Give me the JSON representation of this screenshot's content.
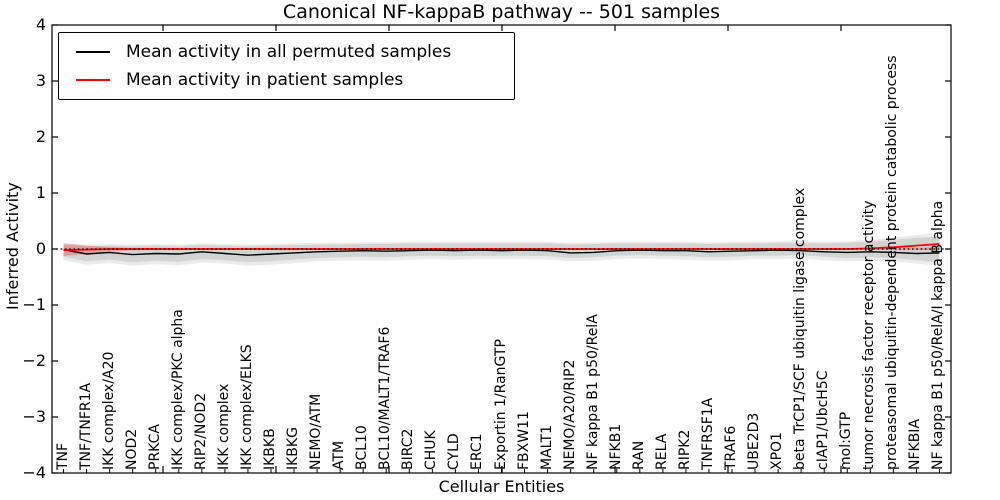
{
  "chart_data": {
    "type": "line",
    "title": "Canonical NF-kappaB pathway -- 501 samples",
    "xlabel": "Cellular Entities",
    "ylabel": "Inferred Activity",
    "ylim": [
      -4,
      4
    ],
    "ytick_labels": [
      "4",
      "3",
      "2",
      "1",
      "0",
      "−1",
      "−2",
      "−3",
      "−4"
    ],
    "grid": false,
    "legend_position": "upper left",
    "zero_reference_line": "black dotted at y=0",
    "categories": [
      "TNF",
      "TNF/TNFR1A",
      "IKK complex/A20",
      "NOD2",
      "PRKCA",
      "IKK complex/PKC alpha",
      "RIP2/NOD2",
      "IKK complex",
      "IKK complex/ELKS",
      "IKBKB",
      "IKBKG",
      "NEMO/ATM",
      "ATM",
      "BCL10",
      "BCL10/MALT1/TRAF6",
      "BIRC2",
      "CHUK",
      "CYLD",
      "ERC1",
      "Exportin 1/RanGTP",
      "FBXW11",
      "MALT1",
      "NEMO/A20/RIP2",
      "NF kappa B1 p50/RelA",
      "NFKB1",
      "RAN",
      "RELA",
      "RIPK2",
      "TNFRSF1A",
      "TRAF6",
      "UBE2D3",
      "XPO1",
      "beta TrCP1/SCF ubiquitin ligase complex",
      "cIAP1/UbcH5C",
      "mol:GTP",
      "tumor necrosis factor receptor activity",
      "proteasomal ubiquitin-dependent protein catabolic process",
      "NFKBIA",
      "NF kappa B1 p50/RelA/I kappa B alpha"
    ],
    "series": [
      {
        "name": "Mean activity in all permuted samples",
        "color": "#000000",
        "values": [
          -0.01,
          -0.09,
          -0.06,
          -0.1,
          -0.08,
          -0.09,
          -0.05,
          -0.08,
          -0.11,
          -0.09,
          -0.07,
          -0.05,
          -0.04,
          -0.03,
          -0.04,
          -0.03,
          -0.02,
          -0.03,
          -0.02,
          -0.03,
          -0.02,
          -0.03,
          -0.07,
          -0.06,
          -0.03,
          -0.02,
          -0.03,
          -0.03,
          -0.05,
          -0.04,
          -0.03,
          -0.02,
          -0.03,
          -0.05,
          -0.06,
          -0.05,
          -0.06,
          -0.08,
          -0.07
        ]
      },
      {
        "name": "Mean activity in patient samples",
        "color": "#ff0000",
        "values": [
          -0.02,
          -0.01,
          0.0,
          0.0,
          0.0,
          0.0,
          0.0,
          0.0,
          0.0,
          0.0,
          0.0,
          0.0,
          0.0,
          0.0,
          0.0,
          0.0,
          0.0,
          0.0,
          0.0,
          0.0,
          0.0,
          0.0,
          0.0,
          0.0,
          0.0,
          0.0,
          0.0,
          0.0,
          0.0,
          0.0,
          0.0,
          0.0,
          0.0,
          0.0,
          0.0,
          0.01,
          0.03,
          0.06,
          0.09
        ]
      }
    ],
    "bands": [
      {
        "name": "permuted-envelope-outer",
        "color": "rgba(0,0,0,0.08)",
        "top": [
          0.1,
          0.08,
          0.09,
          0.08,
          0.09,
          0.08,
          0.1,
          0.09,
          0.08,
          0.09,
          0.1,
          0.11,
          0.11,
          0.12,
          0.12,
          0.13,
          0.13,
          0.13,
          0.13,
          0.13,
          0.13,
          0.13,
          0.11,
          0.12,
          0.13,
          0.13,
          0.13,
          0.13,
          0.12,
          0.13,
          0.13,
          0.14,
          0.14,
          0.13,
          0.14,
          0.17,
          0.2,
          0.25,
          0.28
        ],
        "bottom": [
          -0.2,
          -0.28,
          -0.25,
          -0.3,
          -0.27,
          -0.29,
          -0.24,
          -0.26,
          -0.3,
          -0.28,
          -0.25,
          -0.22,
          -0.21,
          -0.2,
          -0.21,
          -0.19,
          -0.18,
          -0.19,
          -0.18,
          -0.18,
          -0.18,
          -0.19,
          -0.22,
          -0.21,
          -0.18,
          -0.17,
          -0.18,
          -0.19,
          -0.21,
          -0.2,
          -0.18,
          -0.18,
          -0.17,
          -0.2,
          -0.22,
          -0.21,
          -0.22,
          -0.26,
          -0.3
        ]
      },
      {
        "name": "permuted-envelope-inner",
        "color": "rgba(0,0,0,0.10)",
        "top": [
          0.07,
          0.05,
          0.06,
          0.05,
          0.06,
          0.05,
          0.07,
          0.06,
          0.05,
          0.06,
          0.07,
          0.08,
          0.08,
          0.09,
          0.09,
          0.1,
          0.1,
          0.1,
          0.1,
          0.1,
          0.1,
          0.1,
          0.08,
          0.09,
          0.1,
          0.1,
          0.1,
          0.1,
          0.09,
          0.1,
          0.1,
          0.11,
          0.11,
          0.1,
          0.11,
          0.13,
          0.16,
          0.2,
          0.22
        ],
        "bottom": [
          -0.14,
          -0.22,
          -0.19,
          -0.24,
          -0.21,
          -0.23,
          -0.18,
          -0.2,
          -0.24,
          -0.22,
          -0.19,
          -0.16,
          -0.15,
          -0.14,
          -0.15,
          -0.13,
          -0.12,
          -0.13,
          -0.12,
          -0.12,
          -0.12,
          -0.13,
          -0.16,
          -0.15,
          -0.12,
          -0.11,
          -0.12,
          -0.13,
          -0.15,
          -0.14,
          -0.12,
          -0.12,
          -0.11,
          -0.14,
          -0.16,
          -0.15,
          -0.16,
          -0.2,
          -0.24
        ]
      },
      {
        "name": "patient-envelope",
        "color": "rgba(255,0,0,0.25)",
        "top": [
          0.1,
          0.06,
          0.03,
          0.02,
          0.015,
          0.01,
          0.01,
          0.01,
          0.01,
          0.01,
          0.01,
          0.01,
          0.01,
          0.01,
          0.01,
          0.01,
          0.01,
          0.01,
          0.01,
          0.01,
          0.01,
          0.01,
          0.01,
          0.01,
          0.01,
          0.01,
          0.01,
          0.01,
          0.01,
          0.01,
          0.01,
          0.01,
          0.01,
          0.01,
          0.01,
          0.015,
          0.02,
          0.025,
          0.03
        ],
        "bottom": [
          -0.13,
          -0.08,
          -0.04,
          -0.025,
          -0.02,
          -0.012,
          -0.012,
          -0.012,
          -0.012,
          -0.012,
          -0.012,
          -0.012,
          -0.012,
          -0.012,
          -0.012,
          -0.012,
          -0.012,
          -0.012,
          -0.012,
          -0.012,
          -0.012,
          -0.012,
          -0.012,
          -0.012,
          -0.012,
          -0.012,
          -0.012,
          -0.012,
          -0.012,
          -0.012,
          -0.012,
          -0.012,
          -0.012,
          -0.012,
          -0.012,
          -0.015,
          -0.02,
          -0.02,
          -0.025
        ]
      }
    ],
    "colors": {
      "frame": "#000000",
      "zero_line": "#000000",
      "background": "#ffffff"
    }
  },
  "legend": {
    "entries": [
      {
        "label": "Mean activity in all permuted samples",
        "color": "#000000"
      },
      {
        "label": "Mean activity in patient samples",
        "color": "#ff0000"
      }
    ]
  }
}
